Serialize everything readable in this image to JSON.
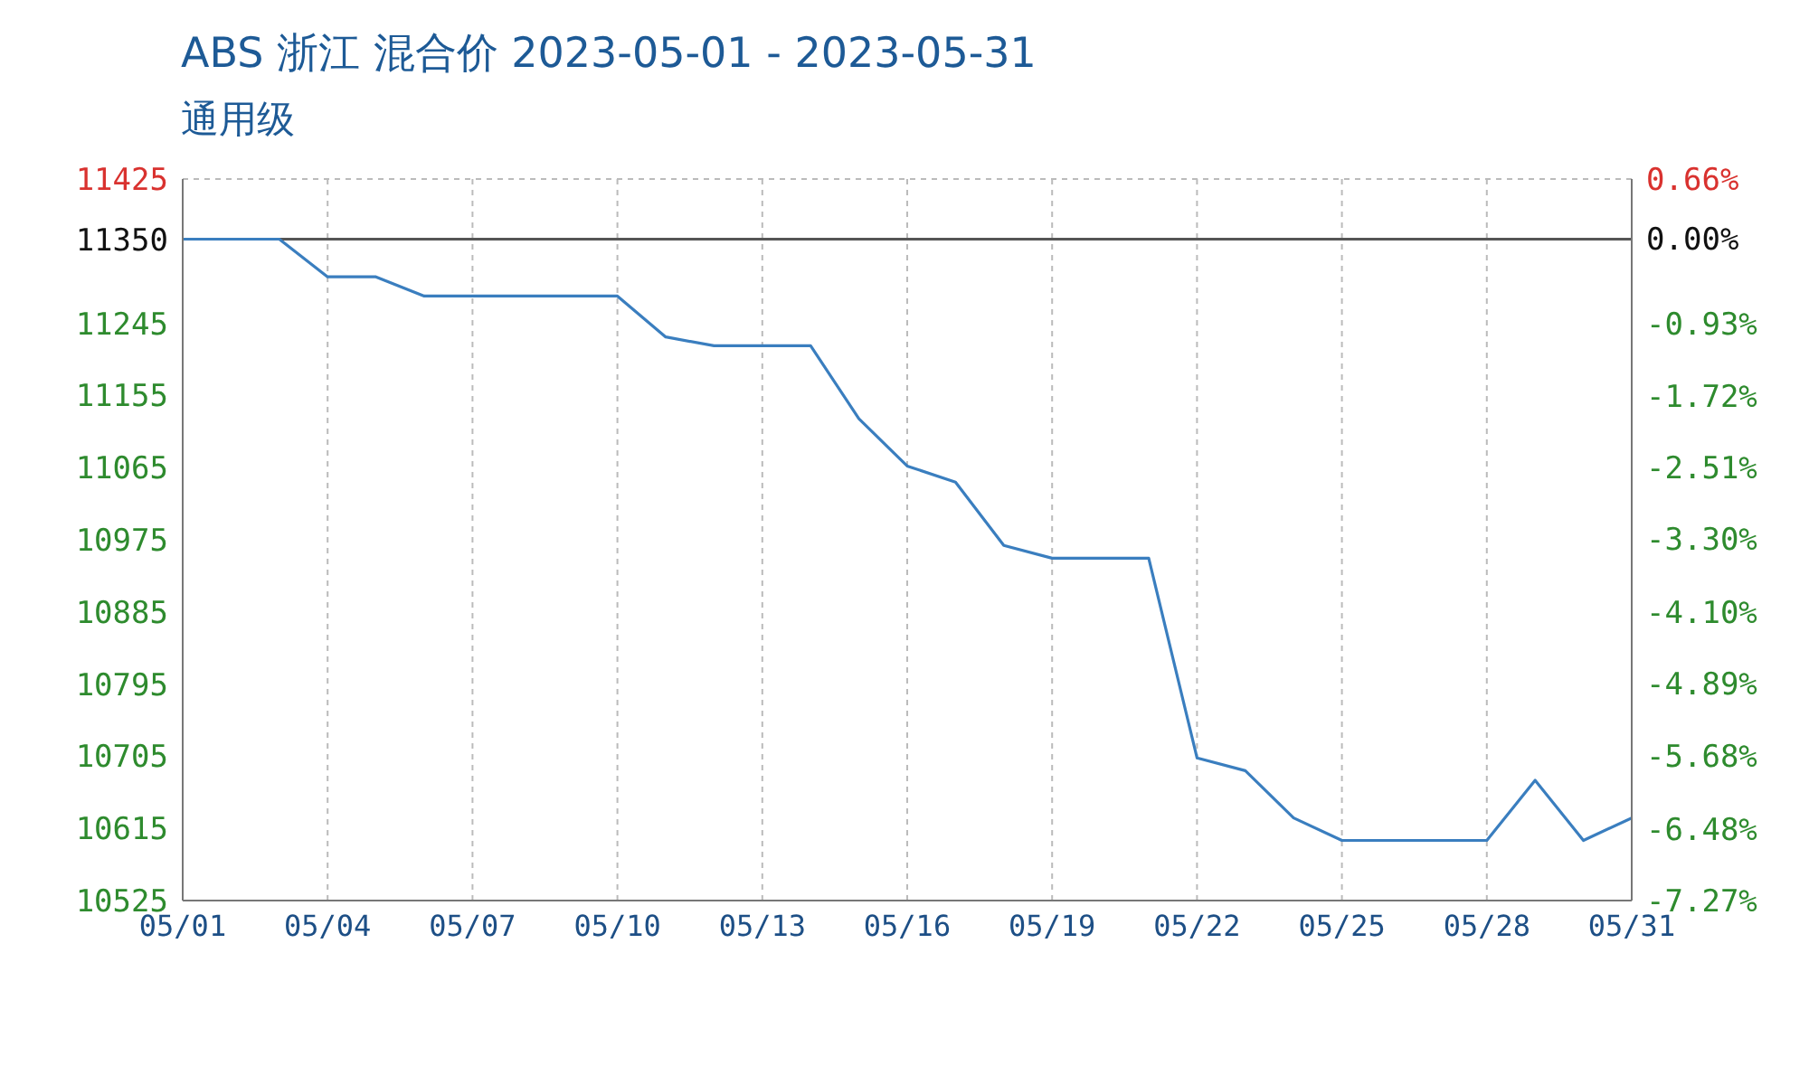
{
  "chart_data": {
    "type": "line",
    "title": "ABS 浙江 混合价 2023-05-01 - 2023-05-31",
    "subtitle": "通用级",
    "x": [
      "--05-01",
      "--05-02",
      "--05-03",
      "--05-04",
      "--05-05",
      "--05-06",
      "--05-07",
      "--05-08",
      "--05-09",
      "--05-10",
      "--05-11",
      "--05-12",
      "--05-13",
      "--05-14",
      "--05-15",
      "--05-16",
      "--05-17",
      "--05-18",
      "--05-19",
      "--05-20",
      "--05-21",
      "--05-22",
      "--05-23",
      "--05-24",
      "--05-25",
      "--05-26",
      "--05-27",
      "--05-28",
      "--05-29",
      "--05-30",
      "--05-31"
    ],
    "series": [
      {
        "color": "#3a7ebf",
        "values": [
          11350,
          11350,
          11350,
          11303,
          11303,
          11279,
          11279,
          11279,
          11279,
          11279,
          11228,
          11217,
          11217,
          11217,
          11126,
          11067,
          11047,
          10968,
          10952,
          10952,
          10952,
          10703,
          10687,
          10628,
          10600,
          10600,
          10600,
          10600,
          10675,
          10600,
          10628
        ]
      }
    ],
    "xlim": [
      "--05-01",
      "--05-31"
    ],
    "xticks": [
      {
        "value": "--05-01",
        "label": "05/01"
      },
      {
        "value": "--05-04",
        "label": "05/04"
      },
      {
        "value": "--05-07",
        "label": "05/07"
      },
      {
        "value": "--05-10",
        "label": "05/10"
      },
      {
        "value": "--05-13",
        "label": "05/13"
      },
      {
        "value": "--05-16",
        "label": "05/16"
      },
      {
        "value": "--05-19",
        "label": "05/19"
      },
      {
        "value": "--05-22",
        "label": "05/22"
      },
      {
        "value": "--05-25",
        "label": "05/25"
      },
      {
        "value": "--05-28",
        "label": "05/28"
      },
      {
        "value": "--05-31",
        "label": "05/31"
      }
    ],
    "ylim": [
      10525,
      11425
    ],
    "yticks": [
      11425,
      11350,
      11245,
      11155,
      11065,
      10975,
      10885,
      10795,
      10705,
      10615,
      10525
    ],
    "y2lim": [
      -7.27,
      0.66
    ],
    "y2ticks": [
      {
        "value": 0.66,
        "label": "0.66%"
      },
      {
        "value": 0,
        "label": "0.00%"
      },
      {
        "value": -0.93,
        "label": "-0.93%"
      },
      {
        "value": -1.72,
        "label": "-1.72%"
      },
      {
        "value": -2.51,
        "label": "-2.51%"
      },
      {
        "value": -3.3,
        "label": "-3.30%"
      },
      {
        "value": -4.1,
        "label": "-4.10%"
      },
      {
        "value": -4.89,
        "label": "-4.89%"
      },
      {
        "value": -5.68,
        "label": "-5.68%"
      },
      {
        "value": -6.48,
        "label": "-6.48%"
      },
      {
        "value": -7.27,
        "label": "-7.27%"
      }
    ],
    "ref_lines": [
      {
        "axis": "y",
        "value": 11350,
        "color": "#555555"
      }
    ],
    "grid": true,
    "legend": false,
    "marker": "none",
    "line_style": "solid"
  }
}
